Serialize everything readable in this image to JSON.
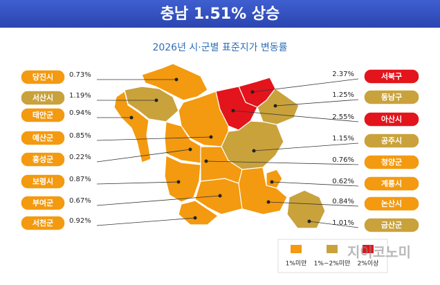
{
  "title": "충남 1.51% 상승",
  "subtitle": "2026년 시·군별 표준지가 변동률",
  "regions": [
    {
      "name": "당진시",
      "value": "0.73%",
      "color": "#f39a10"
    },
    {
      "name": "서산시",
      "value": "1.19%",
      "color": "#c9a23c"
    },
    {
      "name": "태안군",
      "value": "0.94%",
      "color": "#f39a10"
    },
    {
      "name": "예산군",
      "value": "0.85%",
      "color": "#f39a10"
    },
    {
      "name": "홍성군",
      "value": "0.22%",
      "color": "#f39a10"
    },
    {
      "name": "보령시",
      "value": "0.87%",
      "color": "#f39a10"
    },
    {
      "name": "부여군",
      "value": "0.67%",
      "color": "#f39a10"
    },
    {
      "name": "서천군",
      "value": "0.92%",
      "color": "#f39a10"
    },
    {
      "name": "서북구",
      "value": "2.37%",
      "color": "#e3141c"
    },
    {
      "name": "동남구",
      "value": "1.25%",
      "color": "#c9a23c"
    },
    {
      "name": "아산시",
      "value": "2.55%",
      "color": "#e3141c"
    },
    {
      "name": "공주시",
      "value": "1.15%",
      "color": "#c9a23c"
    },
    {
      "name": "청양군",
      "value": "0.76%",
      "color": "#f39a10"
    },
    {
      "name": "계룡시",
      "value": "0.62%",
      "color": "#f39a10"
    },
    {
      "name": "논산시",
      "value": "0.84%",
      "color": "#f39a10"
    },
    {
      "name": "금산군",
      "value": "1.01%",
      "color": "#c9a23c"
    }
  ],
  "legend": [
    {
      "label": "1%미만",
      "color": "#f39a10"
    },
    {
      "label": "1%~2%미만",
      "color": "#c9a23c"
    },
    {
      "label": "2%이상",
      "color": "#e3141c"
    }
  ],
  "watermark": "지이코노미"
}
